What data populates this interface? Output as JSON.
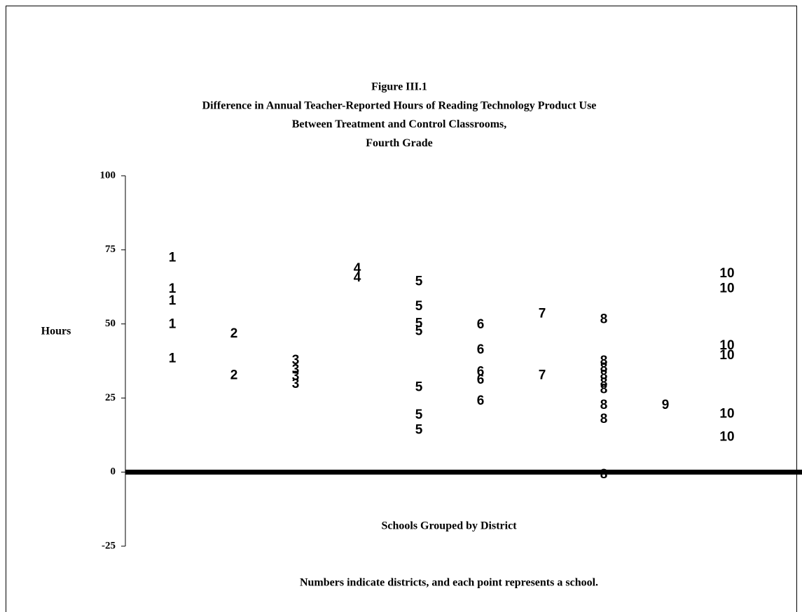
{
  "chart_data": {
    "type": "scatter",
    "title": [
      "Figure III.1",
      "Difference in Annual Teacher-Reported Hours of Reading Technology Product Use",
      "Between Treatment and Control Classrooms,",
      "Fourth Grade"
    ],
    "y_label": "Hours",
    "x_label": "Schools Grouped by District",
    "note": "Numbers indicate districts, and each point represents a school.",
    "ylim": [
      -25,
      100
    ],
    "yticks": [
      100,
      75,
      50,
      25,
      0,
      -25
    ],
    "series": [
      {
        "name": "1",
        "color": "#000000",
        "values": [
          72.5,
          62,
          58,
          50,
          38.5
        ]
      },
      {
        "name": "2",
        "color": "#000000",
        "values": [
          46.8,
          32.8
        ]
      },
      {
        "name": "3",
        "color": "#000000",
        "values": [
          37.8,
          34.7,
          32.4,
          29.8
        ]
      },
      {
        "name": "4",
        "color": "#000000",
        "values": [
          68.8,
          65.7
        ]
      },
      {
        "name": "5",
        "color": "#000000",
        "values": [
          64.5,
          56,
          50.3,
          47.7,
          28.8,
          19.4,
          14.4
        ]
      },
      {
        "name": "6",
        "color": "#000000",
        "values": [
          49.9,
          41.4,
          34,
          31.2,
          24.1
        ]
      },
      {
        "name": "7",
        "color": "#000000",
        "values": [
          53.6,
          32.8
        ]
      },
      {
        "name": "8",
        "color": "#000000",
        "values": [
          51.7,
          37.6,
          35.2,
          32.8,
          30.2,
          28.1,
          22.7,
          18,
          -0.7
        ]
      },
      {
        "name": "9",
        "color": "#000000",
        "values": [
          22.7
        ]
      },
      {
        "name": "10",
        "color": "#000000",
        "values": [
          67.1,
          62.1,
          42.8,
          39.5,
          19.8,
          12
        ]
      }
    ]
  }
}
